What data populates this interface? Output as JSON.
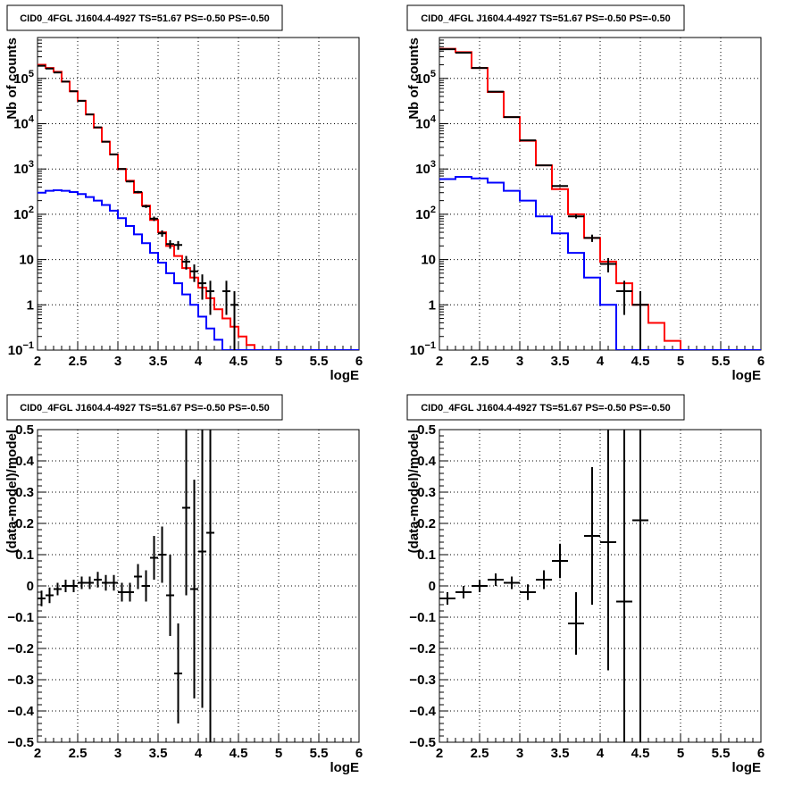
{
  "chart_data": [
    {
      "id": "top-left",
      "type": "line",
      "title": "CID0_4FGL J1604.4-4927 TS=51.67 PS=-0.50 PS=-0.50",
      "xlabel": "logE",
      "ylabel": "Nb of counts",
      "xlim": [
        2,
        6
      ],
      "ylim": [
        0.1,
        800000
      ],
      "yscale": "log",
      "grid": true,
      "x_ticks": [
        "2",
        "2.5",
        "3",
        "3.5",
        "4",
        "4.5",
        "5",
        "5.5",
        "6"
      ],
      "y_ticks": [
        {
          "value": 0.1,
          "label": "10",
          "sup": "−1"
        },
        {
          "value": 1,
          "label": "1",
          "sup": ""
        },
        {
          "value": 10,
          "label": "10",
          "sup": ""
        },
        {
          "value": 100,
          "label": "10",
          "sup": "2"
        },
        {
          "value": 1000,
          "label": "10",
          "sup": "3"
        },
        {
          "value": 10000,
          "label": "10",
          "sup": "4"
        },
        {
          "value": 100000,
          "label": "10",
          "sup": "5"
        }
      ],
      "bin_width": 0.1,
      "series": [
        {
          "color": "#ff0000",
          "render": "step",
          "x": [
            2.05,
            2.15,
            2.25,
            2.35,
            2.45,
            2.55,
            2.65,
            2.75,
            2.85,
            2.95,
            3.05,
            3.15,
            3.25,
            3.35,
            3.45,
            3.55,
            3.65,
            3.75,
            3.85,
            3.95,
            4.05,
            4.15,
            4.25,
            4.35,
            4.45,
            4.55,
            4.65,
            4.75,
            4.85,
            4.95,
            5.05,
            5.15,
            5.25,
            5.35,
            5.45,
            5.55,
            5.65,
            5.75,
            5.85,
            5.95
          ],
          "values": [
            200000,
            170000,
            140000,
            85000,
            52000,
            32000,
            16000,
            8200,
            4000,
            2100,
            1000,
            550,
            300,
            155,
            75,
            40,
            20,
            12,
            6.5,
            4.0,
            2.4,
            1.4,
            0.8,
            0.5,
            0.33,
            0.2,
            0.13,
            0.1,
            0.1,
            0.1,
            0.1,
            0.1,
            0.1,
            0.1,
            0.1,
            0.1,
            0.1,
            0.1,
            0.1,
            0.1
          ]
        },
        {
          "color": "#0000ff",
          "render": "step",
          "x": [
            2.05,
            2.15,
            2.25,
            2.35,
            2.45,
            2.55,
            2.65,
            2.75,
            2.85,
            2.95,
            3.05,
            3.15,
            3.25,
            3.35,
            3.45,
            3.55,
            3.65,
            3.75,
            3.85,
            3.95,
            4.05,
            4.15,
            4.25,
            4.35,
            4.45,
            4.55,
            4.65,
            4.75,
            4.85,
            4.95,
            5.05,
            5.15,
            5.25,
            5.35,
            5.45,
            5.55,
            5.65,
            5.75,
            5.85,
            5.95
          ],
          "values": [
            300,
            330,
            340,
            330,
            310,
            280,
            240,
            200,
            160,
            120,
            82,
            55,
            36,
            23,
            14,
            8.5,
            5,
            3,
            1.7,
            1.0,
            0.55,
            0.3,
            0.17,
            0.1,
            0.1,
            0.1,
            0.1,
            0.1,
            0.1,
            0.1,
            0.1,
            0.1,
            0.1,
            0.1,
            0.1,
            0.1,
            0.1,
            0.1,
            0.1,
            0.1
          ]
        },
        {
          "color": "#000000",
          "render": "errorbar",
          "x": [
            2.05,
            2.15,
            2.25,
            2.35,
            2.45,
            2.55,
            2.65,
            2.75,
            2.85,
            2.95,
            3.05,
            3.15,
            3.25,
            3.35,
            3.45,
            3.55,
            3.65,
            3.75,
            3.85,
            3.95,
            4.05,
            4.15,
            4.25,
            4.35,
            4.45
          ],
          "values": [
            190000,
            165000,
            135000,
            85000,
            52000,
            32000,
            16000,
            8300,
            4000,
            2100,
            1000,
            530,
            310,
            150,
            80,
            38,
            22,
            21,
            9,
            5.5,
            3,
            2,
            0,
            2,
            1
          ],
          "errors": [
            440,
            400,
            370,
            290,
            230,
            180,
            130,
            90,
            63,
            46,
            32,
            23,
            18,
            12,
            9,
            6.2,
            4.7,
            4.6,
            3,
            2.3,
            1.7,
            1.4,
            0,
            1.4,
            1
          ]
        }
      ]
    },
    {
      "id": "top-right",
      "type": "line",
      "title": "CID0_4FGL J1604.4-4927 TS=51.67 PS=-0.50 PS=-0.50",
      "xlabel": "logE",
      "ylabel": "Nb of counts",
      "xlim": [
        2,
        6
      ],
      "ylim": [
        0.1,
        800000
      ],
      "yscale": "log",
      "grid": true,
      "x_ticks": [
        "2",
        "2.5",
        "3",
        "3.5",
        "4",
        "4.5",
        "5",
        "5.5",
        "6"
      ],
      "y_ticks": [
        {
          "value": 0.1,
          "label": "10",
          "sup": "−1"
        },
        {
          "value": 1,
          "label": "1",
          "sup": ""
        },
        {
          "value": 10,
          "label": "10",
          "sup": ""
        },
        {
          "value": 100,
          "label": "10",
          "sup": "2"
        },
        {
          "value": 1000,
          "label": "10",
          "sup": "3"
        },
        {
          "value": 10000,
          "label": "10",
          "sup": "4"
        },
        {
          "value": 100000,
          "label": "10",
          "sup": "5"
        }
      ],
      "bin_width": 0.2,
      "series": [
        {
          "color": "#ff0000",
          "render": "step",
          "x": [
            2.1,
            2.3,
            2.5,
            2.7,
            2.9,
            3.1,
            3.3,
            3.5,
            3.7,
            3.9,
            4.1,
            4.3,
            4.5,
            4.7,
            4.9,
            5.1,
            5.3,
            5.5,
            5.7,
            5.9
          ],
          "values": [
            450000,
            380000,
            170000,
            50000,
            14000,
            4200,
            1200,
            360,
            100,
            30,
            9,
            3,
            1,
            0.4,
            0.16,
            0.1,
            0.1,
            0.1,
            0.1,
            0.1
          ]
        },
        {
          "color": "#0000ff",
          "render": "step",
          "x": [
            2.1,
            2.3,
            2.5,
            2.7,
            2.9,
            3.1,
            3.3,
            3.5,
            3.7,
            3.9,
            4.1,
            4.3,
            4.5,
            4.7,
            4.9,
            5.1,
            5.3,
            5.5,
            5.7,
            5.9
          ],
          "values": [
            600,
            670,
            620,
            500,
            330,
            200,
            90,
            38,
            14,
            4,
            1,
            0.1,
            0.1,
            0.1,
            0.1,
            0.1,
            0.1,
            0.1,
            0.1,
            0.1
          ]
        },
        {
          "color": "#000000",
          "render": "errorbar",
          "x": [
            2.1,
            2.3,
            2.5,
            2.7,
            2.9,
            3.1,
            3.3,
            3.5,
            3.7,
            3.9,
            4.1,
            4.3,
            4.5
          ],
          "values": [
            440000,
            370000,
            170000,
            51000,
            14000,
            4300,
            1200,
            420,
            90,
            30,
            8,
            2,
            1
          ],
          "errors": [
            660,
            610,
            410,
            225,
            118,
            66,
            35,
            20,
            9.5,
            5.5,
            2.8,
            1.4,
            1
          ]
        }
      ]
    },
    {
      "id": "bottom-left",
      "type": "scatter",
      "title": "CID0_4FGL J1604.4-4927 TS=51.67 PS=-0.50 PS=-0.50",
      "xlabel": "logE",
      "ylabel": "(data-model)/model",
      "xlim": [
        2,
        6
      ],
      "ylim": [
        -0.5,
        0.5
      ],
      "yscale": "linear",
      "grid": true,
      "x_ticks": [
        "2",
        "2.5",
        "3",
        "3.5",
        "4",
        "4.5",
        "5",
        "5.5",
        "6"
      ],
      "y_ticks": [
        {
          "value": -0.5,
          "label": "−0.5",
          "sup": ""
        },
        {
          "value": -0.4,
          "label": "−0.4",
          "sup": ""
        },
        {
          "value": -0.3,
          "label": "−0.3",
          "sup": ""
        },
        {
          "value": -0.2,
          "label": "−0.2",
          "sup": ""
        },
        {
          "value": -0.1,
          "label": "−0.1",
          "sup": ""
        },
        {
          "value": 0,
          "label": "0",
          "sup": ""
        },
        {
          "value": 0.1,
          "label": "0.1",
          "sup": ""
        },
        {
          "value": 0.2,
          "label": "0.2",
          "sup": ""
        },
        {
          "value": 0.3,
          "label": "0.3",
          "sup": ""
        },
        {
          "value": 0.4,
          "label": "0.4",
          "sup": ""
        },
        {
          "value": 0.5,
          "label": "0.5",
          "sup": ""
        }
      ],
      "bin_width": 0.1,
      "series": [
        {
          "color": "#000000",
          "render": "errorbar",
          "x": [
            2.05,
            2.15,
            2.25,
            2.35,
            2.45,
            2.55,
            2.65,
            2.75,
            2.85,
            2.95,
            3.05,
            3.15,
            3.25,
            3.35,
            3.45,
            3.55,
            3.65,
            3.75,
            3.85,
            3.95,
            4.05,
            4.15
          ],
          "values": [
            -0.04,
            -0.03,
            -0.01,
            0.0,
            0.0,
            0.01,
            0.01,
            0.02,
            0.01,
            0.01,
            -0.02,
            -0.02,
            0.03,
            0.0,
            0.09,
            0.1,
            -0.03,
            -0.28,
            0.25,
            -0.01,
            0.11,
            0.17
          ],
          "errors": [
            0.025,
            0.025,
            0.02,
            0.02,
            0.02,
            0.02,
            0.02,
            0.025,
            0.025,
            0.025,
            0.03,
            0.03,
            0.04,
            0.05,
            0.07,
            0.09,
            0.13,
            0.16,
            0.28,
            0.35,
            0.5,
            0.7
          ]
        }
      ]
    },
    {
      "id": "bottom-right",
      "type": "scatter",
      "title": "CID0_4FGL J1604.4-4927 TS=51.67 PS=-0.50 PS=-0.50",
      "xlabel": "logE",
      "ylabel": "(data-model)/model",
      "xlim": [
        2,
        6
      ],
      "ylim": [
        -0.5,
        0.5
      ],
      "yscale": "linear",
      "grid": true,
      "x_ticks": [
        "2",
        "2.5",
        "3",
        "3.5",
        "4",
        "4.5",
        "5",
        "5.5",
        "6"
      ],
      "y_ticks": [
        {
          "value": -0.5,
          "label": "−0.5",
          "sup": ""
        },
        {
          "value": -0.4,
          "label": "−0.4",
          "sup": ""
        },
        {
          "value": -0.3,
          "label": "−0.3",
          "sup": ""
        },
        {
          "value": -0.2,
          "label": "−0.2",
          "sup": ""
        },
        {
          "value": -0.1,
          "label": "−0.1",
          "sup": ""
        },
        {
          "value": 0,
          "label": "0",
          "sup": ""
        },
        {
          "value": 0.1,
          "label": "0.1",
          "sup": ""
        },
        {
          "value": 0.2,
          "label": "0.2",
          "sup": ""
        },
        {
          "value": 0.3,
          "label": "0.3",
          "sup": ""
        },
        {
          "value": 0.4,
          "label": "0.4",
          "sup": ""
        },
        {
          "value": 0.5,
          "label": "0.5",
          "sup": ""
        }
      ],
      "bin_width": 0.2,
      "series": [
        {
          "color": "#000000",
          "render": "errorbar",
          "x": [
            2.1,
            2.3,
            2.5,
            2.7,
            2.9,
            3.1,
            3.3,
            3.5,
            3.7,
            3.9,
            4.1,
            4.3,
            4.5
          ],
          "values": [
            -0.04,
            -0.02,
            0.0,
            0.02,
            0.01,
            -0.02,
            0.02,
            0.08,
            -0.12,
            0.16,
            0.14,
            -0.05,
            0.21
          ],
          "errors": [
            0.02,
            0.02,
            0.02,
            0.02,
            0.02,
            0.025,
            0.03,
            0.055,
            0.1,
            0.22,
            0.41,
            0.6,
            0.9
          ]
        }
      ]
    }
  ]
}
